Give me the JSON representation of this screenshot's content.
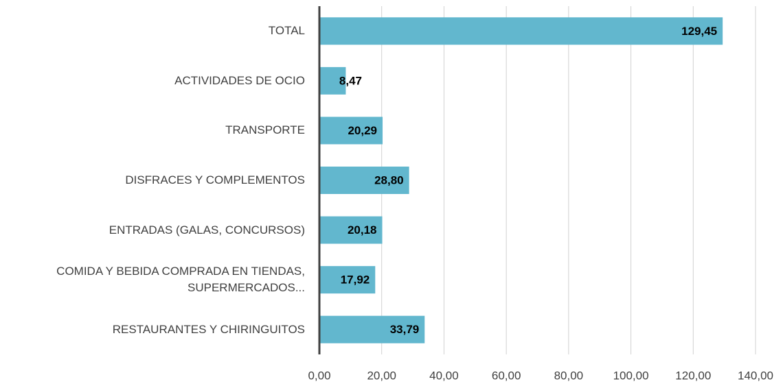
{
  "chart_data": {
    "type": "barh",
    "categories": [
      "TOTAL",
      "ACTIVIDADES DE OCIO",
      "TRANSPORTE",
      "DISFRACES Y COMPLEMENTOS",
      "ENTRADAS (GALAS, CONCURSOS)",
      "COMIDA Y BEBIDA COMPRADA EN TIENDAS, SUPERMERCADOS...",
      "RESTAURANTES Y CHIRINGUITOS"
    ],
    "values": [
      129.45,
      8.47,
      20.29,
      28.8,
      20.18,
      17.92,
      33.79
    ],
    "value_labels": [
      "129,45",
      "8,47",
      "20,29",
      "28,80",
      "20,18",
      "17,92",
      "33,79"
    ],
    "color": "#62b7ce",
    "xlim": [
      0,
      140
    ],
    "xticks": [
      {
        "value": 0,
        "label": "0,00"
      },
      {
        "value": 20,
        "label": "20,00"
      },
      {
        "value": 40,
        "label": "40,00"
      },
      {
        "value": 60,
        "label": "60,00"
      },
      {
        "value": 80,
        "label": "80,00"
      },
      {
        "value": 100,
        "label": "100,00"
      },
      {
        "value": 120,
        "label": "120,00"
      },
      {
        "value": 140,
        "label": "140,00"
      }
    ],
    "grid": true
  }
}
